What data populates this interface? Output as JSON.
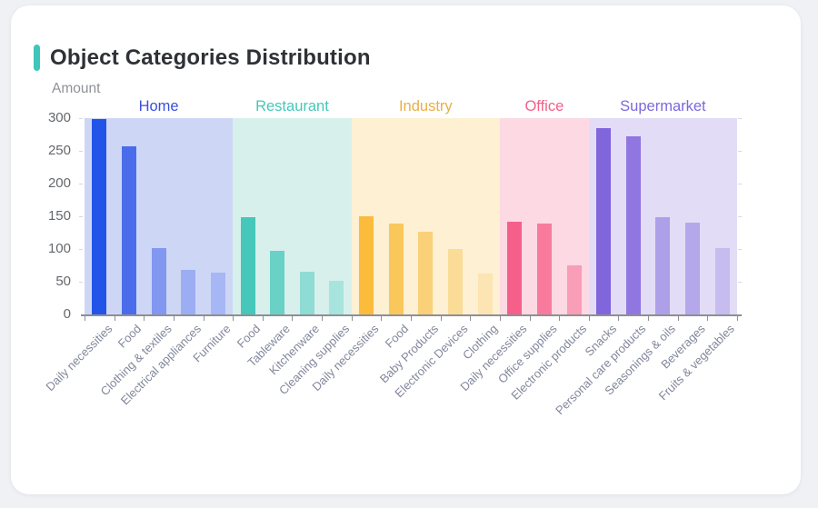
{
  "header": {
    "title": "Object Categories Distribution",
    "accent_color": "#3ec6bb"
  },
  "chart_data": {
    "type": "bar",
    "title": "Object Categories Distribution",
    "xlabel": "",
    "ylabel": "Amount",
    "ylim": [
      0,
      300
    ],
    "y_ticks": [
      0,
      50,
      100,
      150,
      200,
      250,
      300
    ],
    "grid": false,
    "legend_position": "group labels above colored bands inside plot",
    "groups": [
      {
        "name": "Home",
        "label_color": "#3a50dd",
        "band_color": "#cdd7f5",
        "items": [
          {
            "category": "Daily necessities",
            "value": 298,
            "color": "#2254e9"
          },
          {
            "category": "Food",
            "value": 257,
            "color": "#4a6ceb"
          },
          {
            "category": "Clothing & textiles",
            "value": 102,
            "color": "#8297f0"
          },
          {
            "category": "Electrical appliances",
            "value": 68,
            "color": "#9caef3"
          },
          {
            "category": "Furniture",
            "value": 64,
            "color": "#a7b6f4"
          }
        ]
      },
      {
        "name": "Restaurant",
        "label_color": "#45c8ba",
        "band_color": "#d7f0ec",
        "items": [
          {
            "category": "Food",
            "value": 148,
            "color": "#45c7ba"
          },
          {
            "category": "Tableware",
            "value": 97,
            "color": "#69d1c6"
          },
          {
            "category": "Kitchenware",
            "value": 65,
            "color": "#8fdcd4"
          },
          {
            "category": "Cleaning supplies",
            "value": 51,
            "color": "#a8e4de"
          }
        ]
      },
      {
        "name": "Industry",
        "label_color": "#eaaf45",
        "band_color": "#fdf0d3",
        "items": [
          {
            "category": "Daily necessities",
            "value": 150,
            "color": "#fbbc3c"
          },
          {
            "category": "Food",
            "value": 139,
            "color": "#f9c75a"
          },
          {
            "category": "Baby Products",
            "value": 127,
            "color": "#fad078"
          },
          {
            "category": "Electronic Devices",
            "value": 100,
            "color": "#fbdc97"
          },
          {
            "category": "Clothing",
            "value": 63,
            "color": "#fce5b2"
          }
        ]
      },
      {
        "name": "Office",
        "label_color": "#f25f88",
        "band_color": "#fcd9e3",
        "items": [
          {
            "category": "Daily necessities",
            "value": 142,
            "color": "#f75f8b"
          },
          {
            "category": "Office supplies",
            "value": 139,
            "color": "#f87b9d"
          },
          {
            "category": "Electronic products",
            "value": 75,
            "color": "#fa9db6"
          }
        ]
      },
      {
        "name": "Supermarket",
        "label_color": "#7d68dd",
        "band_color": "#e2dcf6",
        "items": [
          {
            "category": "Snacks",
            "value": 285,
            "color": "#8165dc"
          },
          {
            "category": "Personal care products",
            "value": 272,
            "color": "#9076e0"
          },
          {
            "category": "Seasonings & oils",
            "value": 148,
            "color": "#ada0e9"
          },
          {
            "category": "Beverages",
            "value": 140,
            "color": "#b4a8eb"
          },
          {
            "category": "Fruits & vegetables",
            "value": 101,
            "color": "#c7bcf0"
          }
        ]
      }
    ]
  }
}
